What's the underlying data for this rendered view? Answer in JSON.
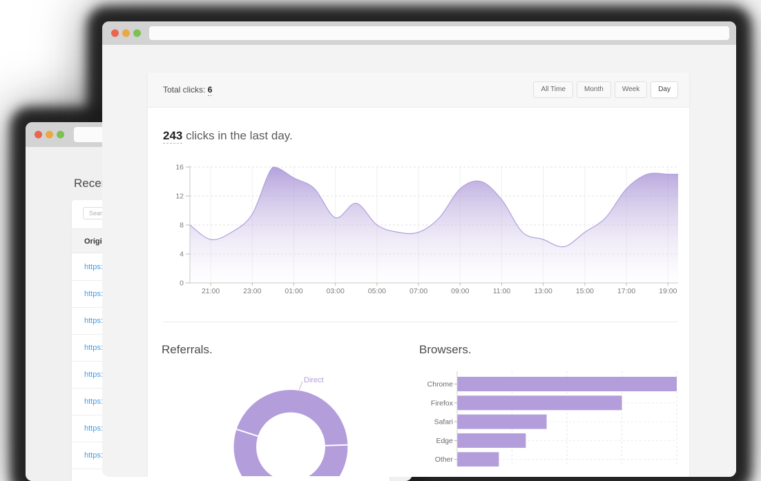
{
  "front_window": {
    "address_bar": "",
    "total_clicks": {
      "label": "Total clicks: ",
      "value": "6"
    },
    "range_buttons": [
      {
        "label": "All Time",
        "active": false
      },
      {
        "label": "Month",
        "active": false
      },
      {
        "label": "Week",
        "active": false
      },
      {
        "label": "Day",
        "active": true
      }
    ],
    "headline": {
      "count": "243",
      "text": " clicks in the last day."
    },
    "referrals_title": "Referrals.",
    "browsers_title": "Browsers."
  },
  "back_window": {
    "address_bar": "",
    "page_heading": "Recent",
    "search_placeholder": "Search",
    "table": {
      "header": "Original",
      "rows": [
        "https:",
        "https:",
        "https:",
        "https:",
        "https:",
        "https:",
        "https:",
        "https:"
      ]
    }
  },
  "colors": {
    "accent_purple": "#b39ddb",
    "area_fill_top": "#977dcd",
    "link_blue": "#3f9ce8",
    "titlebar_gray": "#d3d3d3",
    "traffic_red": "#e8654f",
    "traffic_yellow": "#eaa844",
    "traffic_green": "#7cc152"
  },
  "chart_data": [
    {
      "type": "area",
      "title": "243 clicks in the last day.",
      "x": [
        "20:00",
        "21:00",
        "22:00",
        "23:00",
        "00:00",
        "01:00",
        "02:00",
        "03:00",
        "04:00",
        "05:00",
        "06:00",
        "07:00",
        "08:00",
        "09:00",
        "10:00",
        "11:00",
        "12:00",
        "13:00",
        "14:00",
        "15:00",
        "16:00",
        "17:00",
        "18:00",
        "19:00"
      ],
      "values": [
        8,
        6,
        7,
        9.5,
        16,
        14.5,
        13,
        9,
        11,
        8,
        7,
        7,
        9,
        13,
        14,
        11.5,
        7,
        6,
        5,
        7,
        9,
        13,
        15,
        15
      ],
      "ylim": [
        0,
        16
      ],
      "yticks": [
        0,
        4,
        8,
        12,
        16
      ],
      "xtick_labels": [
        "21:00",
        "23:00",
        "01:00",
        "03:00",
        "05:00",
        "07:00",
        "09:00",
        "11:00",
        "13:00",
        "15:00",
        "17:00",
        "19:00"
      ],
      "grid": true,
      "legend": "none"
    },
    {
      "type": "donut",
      "title": "Referrals.",
      "slices": [
        {
          "label": "Direct",
          "percent": 44
        },
        {
          "label": "",
          "percent": 56
        }
      ],
      "divider_angles_deg": [
        88,
        288
      ]
    },
    {
      "type": "bar",
      "title": "Browsers.",
      "orientation": "horizontal",
      "categories": [
        "Chrome",
        "Firefox",
        "Safari",
        "Edge",
        "Other"
      ],
      "values": [
        4,
        3,
        1.63,
        1.25,
        0.76
      ],
      "xlim": [
        0,
        4.6
      ],
      "x_gridline_step": 1,
      "grid": true
    }
  ]
}
